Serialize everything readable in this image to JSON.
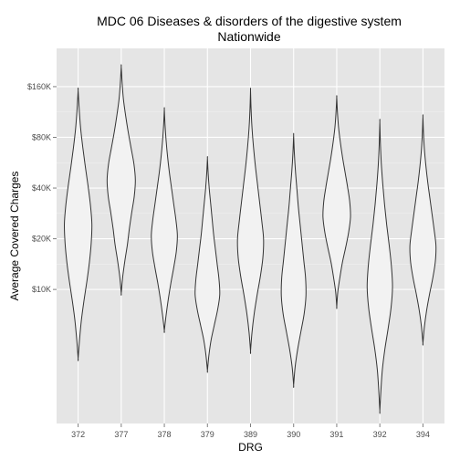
{
  "chart_data": {
    "type": "violin",
    "title": "MDC 06 Diseases & disorders of the digestive system",
    "subtitle": "Nationwide",
    "xlabel": "DRG",
    "ylabel": "Average Covered Charges",
    "y_scale": "log",
    "yticks": [
      {
        "value": 10000,
        "label": "$10K"
      },
      {
        "value": 20000,
        "label": "$20K"
      },
      {
        "value": 40000,
        "label": "$40K"
      },
      {
        "value": 80000,
        "label": "$80K"
      },
      {
        "value": 160000,
        "label": "$160K"
      }
    ],
    "ylim": [
      1600,
      270000
    ],
    "grid": true,
    "categories": [
      "372",
      "377",
      "378",
      "379",
      "389",
      "390",
      "391",
      "392",
      "394"
    ],
    "violins": [
      {
        "category": "372",
        "min": 3900,
        "max": 152000,
        "widths": [
          0,
          0.08,
          0.18,
          0.32,
          0.48,
          0.62,
          0.72,
          0.76,
          0.68,
          0.55,
          0.4,
          0.26,
          0.14,
          0.06,
          0
        ]
      },
      {
        "category": "377",
        "min": 9500,
        "max": 210000,
        "widths": [
          0,
          0.08,
          0.2,
          0.34,
          0.45,
          0.58,
          0.72,
          0.78,
          0.7,
          0.54,
          0.38,
          0.24,
          0.12,
          0.05,
          0
        ]
      },
      {
        "category": "378",
        "min": 5700,
        "max": 117000,
        "widths": [
          0,
          0.1,
          0.22,
          0.36,
          0.52,
          0.66,
          0.72,
          0.64,
          0.52,
          0.4,
          0.28,
          0.18,
          0.1,
          0.04,
          0
        ]
      },
      {
        "category": "379",
        "min": 3300,
        "max": 60000,
        "widths": [
          0,
          0.08,
          0.2,
          0.38,
          0.56,
          0.68,
          0.64,
          0.54,
          0.44,
          0.34,
          0.26,
          0.18,
          0.1,
          0.04,
          0
        ]
      },
      {
        "category": "389",
        "min": 4300,
        "max": 152000,
        "widths": [
          0,
          0.08,
          0.2,
          0.36,
          0.54,
          0.68,
          0.72,
          0.62,
          0.5,
          0.38,
          0.26,
          0.16,
          0.08,
          0.03,
          0
        ]
      },
      {
        "category": "390",
        "min": 2700,
        "max": 82000,
        "widths": [
          0,
          0.08,
          0.22,
          0.4,
          0.58,
          0.68,
          0.66,
          0.56,
          0.46,
          0.36,
          0.26,
          0.18,
          0.1,
          0.04,
          0
        ]
      },
      {
        "category": "391",
        "min": 7900,
        "max": 138000,
        "widths": [
          0,
          0.06,
          0.18,
          0.32,
          0.5,
          0.66,
          0.76,
          0.72,
          0.6,
          0.46,
          0.32,
          0.2,
          0.1,
          0.04,
          0
        ]
      },
      {
        "category": "392",
        "min": 1900,
        "max": 99000,
        "widths": [
          0,
          0.06,
          0.14,
          0.28,
          0.46,
          0.62,
          0.7,
          0.64,
          0.52,
          0.38,
          0.26,
          0.16,
          0.08,
          0.03,
          0
        ]
      },
      {
        "category": "394",
        "min": 4800,
        "max": 106000,
        "widths": [
          0,
          0.08,
          0.2,
          0.36,
          0.54,
          0.68,
          0.72,
          0.62,
          0.5,
          0.38,
          0.26,
          0.16,
          0.08,
          0.03,
          0
        ]
      }
    ]
  }
}
